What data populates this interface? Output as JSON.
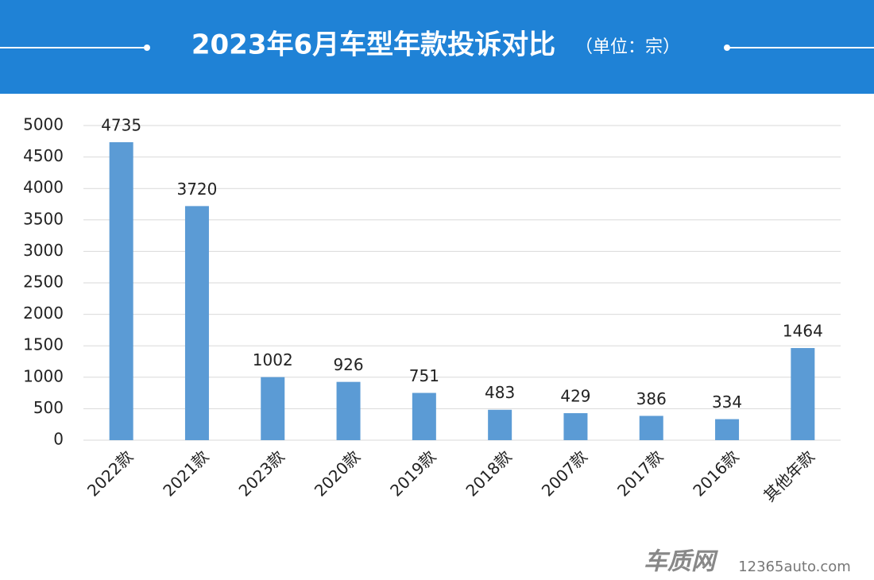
{
  "chart_data": {
    "type": "bar",
    "title": "2023年6月车型年款投诉对比",
    "subtitle": "（单位：宗）",
    "categories": [
      "2022款",
      "2021款",
      "2023款",
      "2020款",
      "2019款",
      "2018款",
      "2007款",
      "2017款",
      "2016款",
      "其他年款"
    ],
    "values": [
      4735,
      3720,
      1002,
      926,
      751,
      483,
      429,
      386,
      334,
      1464
    ],
    "color": "#5b9bd5",
    "ylim": [
      0,
      5000
    ],
    "yticks": [
      0,
      500,
      1000,
      1500,
      2000,
      2500,
      3000,
      3500,
      4000,
      4500,
      5000
    ],
    "grid": true
  },
  "footer": {
    "logo": "车质网",
    "site": "12365auto.com"
  }
}
